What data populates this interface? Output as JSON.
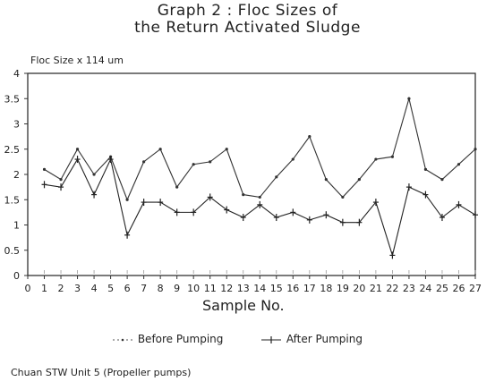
{
  "title_line1": "Graph 2   :   Floc Sizes of",
  "title_line2": "the Return Activated Sludge",
  "footer": "Chuan STW Unit 5 (Propeller pumps)",
  "chart_data": {
    "type": "line",
    "ylabel": "Floc Size  x 114 um",
    "xlabel": "Sample No.",
    "xlim": [
      0,
      27
    ],
    "ylim": [
      0,
      4
    ],
    "x_ticks": [
      0,
      1,
      2,
      3,
      4,
      5,
      6,
      7,
      8,
      9,
      10,
      11,
      12,
      13,
      14,
      15,
      16,
      17,
      18,
      19,
      20,
      21,
      22,
      23,
      24,
      25,
      26,
      27
    ],
    "y_ticks": [
      0,
      0.5,
      1,
      1.5,
      2,
      2.5,
      3,
      3.5,
      4
    ],
    "y_tick_labels": [
      "0",
      "0.5",
      "1",
      "1.5",
      "2",
      "2.5",
      "3",
      "3.5",
      "4"
    ],
    "x": [
      1,
      2,
      3,
      4,
      5,
      6,
      7,
      8,
      9,
      10,
      11,
      12,
      13,
      14,
      15,
      16,
      17,
      18,
      19,
      20,
      21,
      22,
      23,
      24,
      25,
      26,
      27
    ],
    "series": [
      {
        "name": "Before Pumping",
        "values": [
          2.1,
          1.9,
          2.5,
          2.0,
          2.35,
          1.5,
          2.25,
          2.5,
          1.75,
          2.2,
          2.25,
          2.5,
          1.6,
          1.55,
          1.95,
          2.3,
          2.75,
          1.9,
          1.55,
          1.9,
          2.3,
          2.35,
          3.5,
          2.1,
          1.9,
          2.2,
          2.5
        ],
        "color": "#333333"
      },
      {
        "name": "After Pumping",
        "values": [
          1.8,
          1.75,
          2.3,
          1.6,
          2.3,
          0.8,
          1.45,
          1.45,
          1.25,
          1.25,
          1.55,
          1.3,
          1.15,
          1.4,
          1.15,
          1.25,
          1.1,
          1.2,
          1.05,
          1.05,
          1.45,
          0.4,
          1.75,
          1.6,
          1.15,
          1.4,
          1.2
        ],
        "color": "#222222"
      }
    ],
    "legend": [
      "Before Pumping",
      "After Pumping"
    ],
    "legend_position": "bottom"
  }
}
